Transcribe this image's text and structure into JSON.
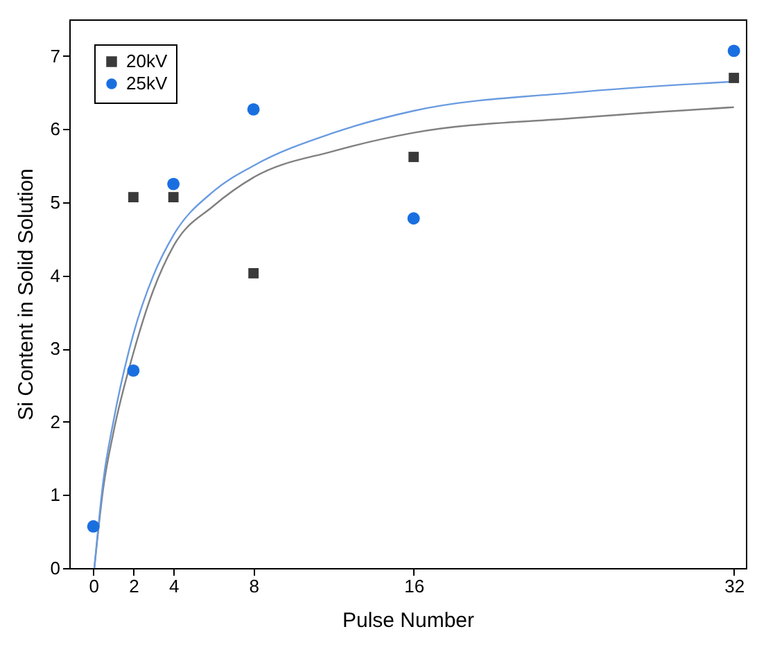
{
  "chart_data": {
    "type": "scatter",
    "xlabel": "Pulse Number",
    "ylabel": "Si Content in Solid Solution",
    "xlim": [
      -1.2,
      32.6
    ],
    "ylim": [
      0,
      7.5
    ],
    "xticks": [
      0,
      2,
      4,
      8,
      16,
      32
    ],
    "yticks": [
      0,
      1,
      2,
      3,
      4,
      5,
      6,
      7
    ],
    "legend": "top left",
    "grid": false,
    "series": [
      {
        "name": "20kV",
        "marker": "square",
        "color": "#3a3a3a",
        "x": [
          2,
          4,
          8,
          16,
          32
        ],
        "values": [
          5.07,
          5.07,
          4.03,
          5.62,
          6.7
        ]
      },
      {
        "name": "25kV",
        "marker": "circle",
        "color": "#1a6fe0",
        "x": [
          0,
          2,
          4,
          8,
          16,
          32
        ],
        "values": [
          0.57,
          2.7,
          5.25,
          6.27,
          4.78,
          7.07
        ]
      },
      {
        "type": "line",
        "color": "#808080",
        "x": [
          0.05,
          0.5,
          1,
          2,
          3,
          4,
          6,
          8,
          12,
          16,
          24,
          32
        ],
        "values": [
          0,
          1.1,
          1.85,
          2.94,
          3.8,
          4.4,
          4.95,
          5.34,
          5.7,
          5.95,
          6.15,
          6.3
        ]
      },
      {
        "type": "line",
        "color": "#6a9be0",
        "x": [
          0.05,
          0.5,
          1,
          2,
          3,
          4,
          6,
          8,
          12,
          16,
          24,
          32
        ],
        "values": [
          0,
          1.2,
          2.0,
          3.2,
          4.0,
          4.55,
          5.15,
          5.5,
          5.95,
          6.25,
          6.5,
          6.65
        ]
      }
    ]
  }
}
